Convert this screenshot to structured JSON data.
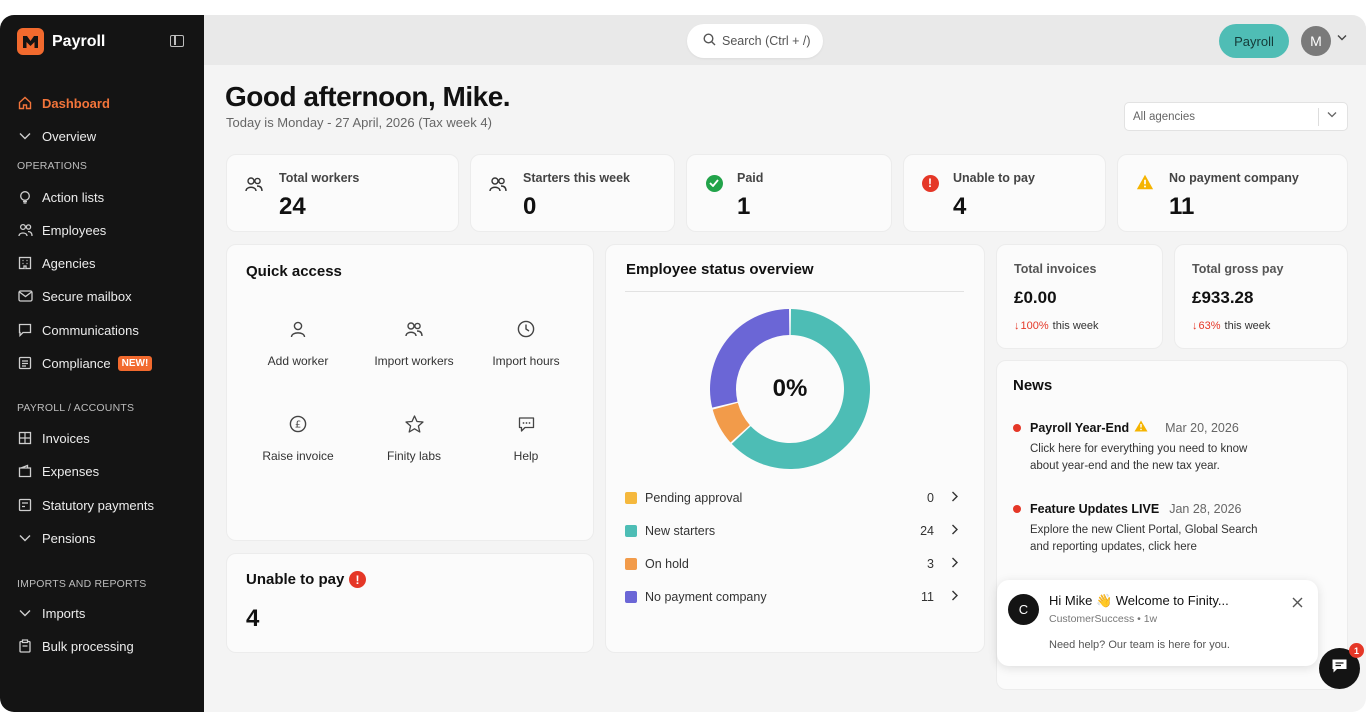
{
  "app": {
    "name": "Payroll"
  },
  "sidebar": {
    "items": [
      {
        "label": "Dashboard"
      },
      {
        "label": "Overview"
      },
      {
        "label": "Action lists"
      },
      {
        "label": "Employees"
      },
      {
        "label": "Agencies"
      },
      {
        "label": "Secure mailbox"
      },
      {
        "label": "Communications"
      },
      {
        "label": "Compliance",
        "badge": "NEW!"
      },
      {
        "label": "Invoices"
      },
      {
        "label": "Expenses"
      },
      {
        "label": "Statutory payments"
      },
      {
        "label": "Pensions"
      },
      {
        "label": "Imports"
      },
      {
        "label": "Bulk processing"
      }
    ],
    "sections": [
      "OPERATIONS",
      "PAYROLL / ACCOUNTS",
      "IMPORTS AND REPORTS"
    ]
  },
  "header": {
    "search_placeholder": "Search (Ctrl + /)",
    "payroll_button": "Payroll",
    "avatar_initial": "M"
  },
  "greeting": {
    "title": "Good afternoon, Mike.",
    "subtitle": "Today is Monday - 27 April, 2026 (Tax week 4)"
  },
  "agency_filter": {
    "value": "All agencies"
  },
  "stats": [
    {
      "label": "Total workers",
      "value": "24"
    },
    {
      "label": "Starters this week",
      "value": "0"
    },
    {
      "label": "Paid",
      "value": "1"
    },
    {
      "label": "Unable to pay",
      "value": "4"
    },
    {
      "label": "No payment company",
      "value": "11"
    }
  ],
  "quick_access": {
    "title": "Quick access",
    "items": [
      {
        "label": "Add worker",
        "icon": "user-icon"
      },
      {
        "label": "Import workers",
        "icon": "users-icon"
      },
      {
        "label": "Import hours",
        "icon": "clock-icon"
      },
      {
        "label": "Raise invoice",
        "icon": "pound-icon"
      },
      {
        "label": "Finity labs",
        "icon": "star-icon"
      },
      {
        "label": "Help",
        "icon": "chat-icon"
      }
    ]
  },
  "unable_card": {
    "title": "Unable to pay",
    "value": "4"
  },
  "status_overview": {
    "title": "Employee status overview",
    "center_label": "0%"
  },
  "chart_data": {
    "type": "pie",
    "categories": [
      "Pending approval",
      "New starters",
      "On hold",
      "No payment company"
    ],
    "values": [
      0,
      24,
      3,
      11
    ],
    "colors": [
      "#f5b83d",
      "#4dbdb5",
      "#f29b4a",
      "#6b66d6"
    ]
  },
  "invoices": {
    "label": "Total invoices",
    "value": "£0.00",
    "change": "100%",
    "suffix": "this week"
  },
  "gross_pay": {
    "label": "Total gross pay",
    "value": "£933.28",
    "change": "63%",
    "suffix": "this week"
  },
  "news": {
    "title": "News",
    "items": [
      {
        "title": "Payroll Year-End",
        "date": "Mar 20, 2026",
        "body": "Click here for everything you need to know about year-end and the new tax year."
      },
      {
        "title": "Feature Updates LIVE",
        "date": "Jan 28, 2026",
        "body": "Explore the new Client Portal, Global Search and reporting updates, click here"
      }
    ]
  },
  "chat_popup": {
    "avatar": "C",
    "title": "Hi Mike 👋 Welcome to Finity...",
    "meta": "CustomerSuccess • 1w",
    "message": "Need help? Our team is here for you.",
    "unread": "1"
  },
  "colors": {
    "accent": "#f26a2e",
    "teal": "#4fbdb5",
    "danger": "#e53727",
    "success": "#22a34a",
    "warning": "#f5b400"
  }
}
